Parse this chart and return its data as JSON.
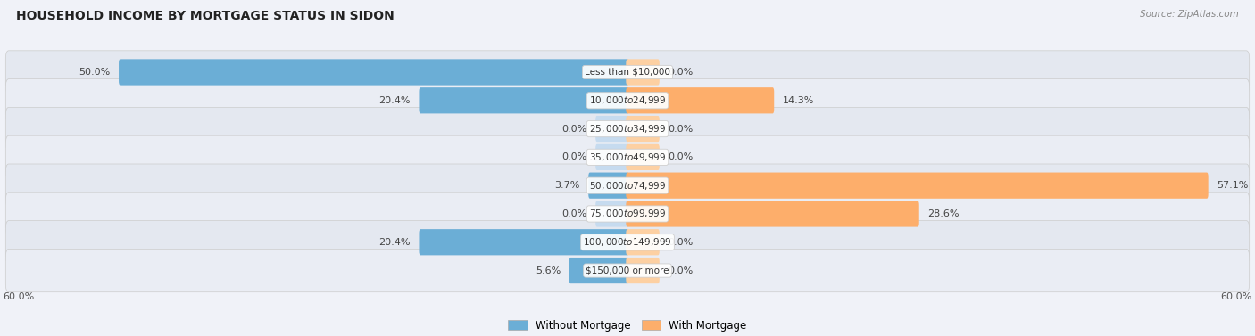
{
  "title": "HOUSEHOLD INCOME BY MORTGAGE STATUS IN SIDON",
  "source": "Source: ZipAtlas.com",
  "categories": [
    "Less than $10,000",
    "$10,000 to $24,999",
    "$25,000 to $34,999",
    "$35,000 to $49,999",
    "$50,000 to $74,999",
    "$75,000 to $99,999",
    "$100,000 to $149,999",
    "$150,000 or more"
  ],
  "without_mortgage": [
    50.0,
    20.4,
    0.0,
    0.0,
    3.7,
    0.0,
    20.4,
    5.6
  ],
  "with_mortgage": [
    0.0,
    14.3,
    0.0,
    0.0,
    57.1,
    28.6,
    0.0,
    0.0
  ],
  "without_mortgage_color": "#6baed6",
  "with_mortgage_color": "#fdae6b",
  "without_mortgage_color_pale": "#c6dbef",
  "with_mortgage_color_pale": "#fdd0a2",
  "axis_limit": 60.0,
  "row_bg_colors": [
    "#e4e8f0",
    "#eaedf4",
    "#e4e8f0",
    "#eaedf4",
    "#e4e8f0",
    "#eaedf4",
    "#e4e8f0",
    "#eaedf4"
  ],
  "bg_color": "#f0f2f8",
  "legend_without": "Without Mortgage",
  "legend_with": "With Mortgage",
  "title_fontsize": 10,
  "label_fontsize": 8,
  "axis_label_fontsize": 8,
  "min_bar_value": 5.0
}
